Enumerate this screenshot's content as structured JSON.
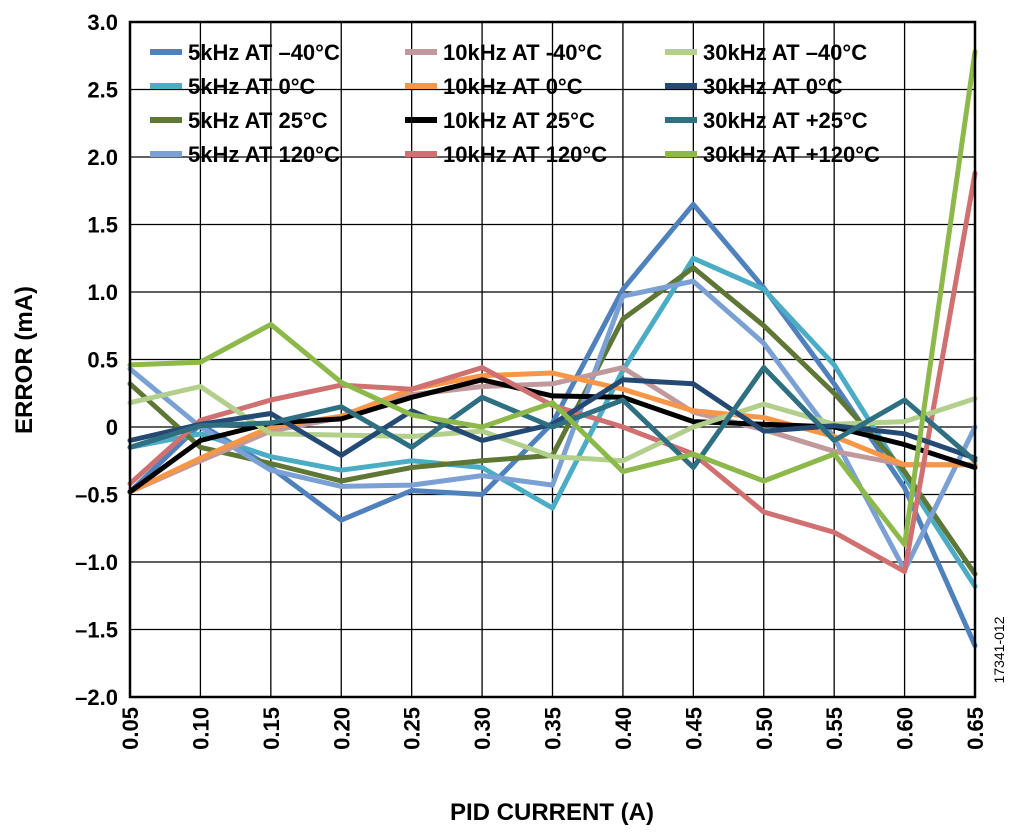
{
  "chart_data": {
    "type": "line",
    "xlabel": "PID CURRENT (A)",
    "ylabel": "ERROR (mA)",
    "figure_code": "17341-012",
    "x": [
      0.05,
      0.1,
      0.15,
      0.2,
      0.25,
      0.3,
      0.35,
      0.4,
      0.45,
      0.5,
      0.55,
      0.6,
      0.65
    ],
    "x_tick_labels": [
      "0.05",
      "0.10",
      "0.15",
      "0.20",
      "0.25",
      "0.30",
      "0.35",
      "0.40",
      "0.45",
      "0.50",
      "0.55",
      "0.60",
      "0.65"
    ],
    "y_ticks": [
      3.0,
      2.5,
      2.0,
      1.5,
      1.0,
      0.5,
      0,
      -0.5,
      -1.0,
      -1.5,
      -2.0
    ],
    "y_tick_labels": [
      "3.0",
      "2.5",
      "2.0",
      "1.5",
      "1.0",
      "0.5",
      "0",
      "–0.5",
      "–1.0",
      "–1.5",
      "–2.0"
    ],
    "xlim": [
      0.05,
      0.65
    ],
    "ylim": [
      -2.0,
      3.0
    ],
    "grid": true,
    "legend_position": "top",
    "legend_columns": 3,
    "series": [
      {
        "name": "5kHz AT –40°C",
        "color": "#4f81bd",
        "values": [
          -0.48,
          0.02,
          -0.3,
          -0.69,
          -0.47,
          -0.5,
          0.03,
          1.02,
          1.65,
          1.03,
          0.32,
          -0.45,
          -1.62
        ]
      },
      {
        "name": "5kHz AT 0°C",
        "color": "#4bacc6",
        "values": [
          -0.15,
          -0.05,
          -0.22,
          -0.32,
          -0.25,
          -0.3,
          -0.6,
          0.42,
          1.25,
          1.02,
          0.46,
          -0.37,
          -1.18
        ]
      },
      {
        "name": "5kHz AT 25°C",
        "color": "#5e7734",
        "values": [
          0.32,
          -0.15,
          -0.27,
          -0.4,
          -0.3,
          -0.25,
          -0.21,
          0.8,
          1.18,
          0.75,
          0.25,
          -0.33,
          -1.09
        ]
      },
      {
        "name": "5kHz AT 120°C",
        "color": "#7ba0d4",
        "values": [
          0.43,
          0.0,
          -0.32,
          -0.44,
          -0.43,
          -0.36,
          -0.43,
          0.97,
          1.08,
          0.62,
          -0.08,
          -1.06,
          0.0
        ]
      },
      {
        "name": "10kHz AT -40°C",
        "color": "#c0999c",
        "values": [
          -0.48,
          -0.25,
          -0.03,
          0.07,
          0.24,
          0.3,
          0.32,
          0.44,
          0.11,
          -0.02,
          -0.18,
          -0.28,
          -0.28
        ]
      },
      {
        "name": "10kHz AT 0°C",
        "color": "#f79646",
        "values": [
          -0.48,
          -0.23,
          0.0,
          0.08,
          0.28,
          0.38,
          0.4,
          0.28,
          0.12,
          0.07,
          -0.07,
          -0.28,
          -0.28
        ]
      },
      {
        "name": "10kHz AT 25°C",
        "color": "#000000",
        "values": [
          -0.48,
          -0.1,
          0.03,
          0.06,
          0.22,
          0.35,
          0.23,
          0.22,
          0.04,
          0.02,
          0.0,
          -0.13,
          -0.3
        ]
      },
      {
        "name": "10kHz AT 120°C",
        "color": "#d07070",
        "values": [
          -0.42,
          0.05,
          0.2,
          0.31,
          0.28,
          0.44,
          0.16,
          0.0,
          -0.2,
          -0.63,
          -0.78,
          -1.07,
          1.88
        ]
      },
      {
        "name": "30kHz AT –40°C",
        "color": "#b3cf8c",
        "values": [
          0.18,
          0.3,
          -0.05,
          -0.06,
          -0.07,
          -0.03,
          -0.22,
          -0.25,
          0.0,
          0.17,
          0.02,
          0.04,
          0.21
        ]
      },
      {
        "name": "30kHz AT 0°C",
        "color": "#244a73",
        "values": [
          -0.1,
          0.02,
          0.1,
          -0.21,
          0.12,
          -0.1,
          0.02,
          0.35,
          0.32,
          -0.03,
          0.01,
          -0.05,
          -0.23
        ]
      },
      {
        "name": "30kHz AT +25°C",
        "color": "#2e7082",
        "values": [
          -0.15,
          0.01,
          0.03,
          0.15,
          -0.15,
          0.22,
          0.0,
          0.2,
          -0.3,
          0.44,
          -0.1,
          0.2,
          -0.25
        ]
      },
      {
        "name": "30kHz AT +120°C",
        "color": "#8db84a",
        "values": [
          0.46,
          0.48,
          0.76,
          0.33,
          0.09,
          0.0,
          0.18,
          -0.33,
          -0.2,
          -0.4,
          -0.2,
          -0.87,
          2.78
        ]
      }
    ]
  }
}
